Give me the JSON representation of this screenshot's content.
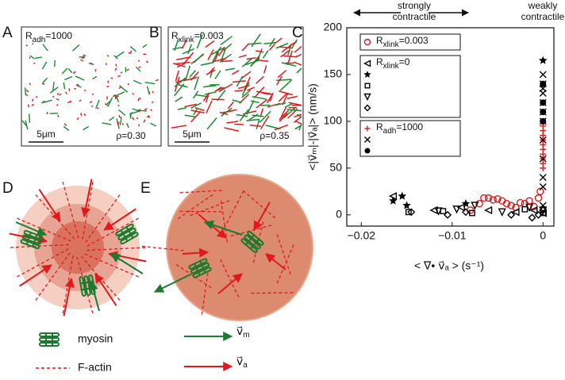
{
  "panels": {
    "a": {
      "letter": "A",
      "param": {
        "main": "R",
        "sub": "adh",
        "rest": "=1000"
      },
      "scale": "5μm",
      "density": "ρ=0.30"
    },
    "b": {
      "letter": "B",
      "param": {
        "main": "R",
        "sub": "xlink",
        "rest": "=0.003"
      },
      "scale": "5μm",
      "density": "ρ=0.35"
    },
    "c": {
      "letter": "C"
    },
    "d": {
      "letter": "D"
    },
    "e": {
      "letter": "E"
    },
    "legend": {
      "myosin": "myosin",
      "actin": "F-actin",
      "vm": {
        "main": "v⃗",
        "sub": "m"
      },
      "va": {
        "main": "v⃗",
        "sub": "a"
      }
    }
  },
  "chart_data": {
    "type": "scatter",
    "top_labels": {
      "left": [
        "strongly",
        "contractile"
      ],
      "right": [
        "weakly",
        "contractile"
      ]
    },
    "y_label": "<|v⃗ₘ|-|v⃗ₐ|> (nm/s)",
    "x_label": "< ∇• v⃗ₐ >  (s⁻¹)",
    "xlim": [
      -0.0216,
      0.0012
    ],
    "ylim": [
      -12,
      200
    ],
    "xticks": [
      {
        "value": -0.02,
        "label": "−0.02"
      },
      {
        "value": -0.01,
        "label": "−0.01"
      },
      0
    ],
    "yticks": [
      0,
      50,
      100,
      150,
      200
    ],
    "legend_groups": [
      {
        "label": {
          "main": "R",
          "sub": "xlink",
          "rest": "=0.003"
        },
        "series": [
          0
        ]
      },
      {
        "label": {
          "main": "R",
          "sub": "xlink",
          "rest": "=0"
        },
        "series": [
          1,
          2,
          3,
          4,
          5
        ]
      },
      {
        "label": {
          "main": "R",
          "sub": "adh",
          "rest": "=1000"
        },
        "series": [
          6,
          7,
          8
        ]
      }
    ],
    "series": [
      {
        "marker": "circle",
        "color": "#e0191b",
        "x": [
          -0.008,
          -0.007,
          -0.0065,
          -0.006,
          -0.0055,
          -0.005,
          -0.0045,
          -0.004,
          -0.0035,
          -0.003,
          -0.0025,
          -0.002,
          -0.0015,
          -0.001,
          -0.0005,
          -0.0003
        ],
        "values": [
          5,
          12,
          18,
          18,
          16,
          17,
          15,
          12,
          10,
          8,
          13,
          12,
          15,
          9,
          18,
          25
        ]
      },
      {
        "marker": "triangle-left",
        "color": "#000000",
        "x": [
          -0.0165,
          -0.012,
          -0.009,
          -0.006,
          -0.003,
          -0.001,
          0
        ],
        "values": [
          20,
          5,
          8,
          5,
          3,
          5,
          2
        ]
      },
      {
        "marker": "star",
        "color": "#000000",
        "x": [
          -0.0165,
          -0.0155,
          -0.015,
          -0.0085,
          0
        ],
        "values": [
          15,
          20,
          10,
          12,
          165
        ]
      },
      {
        "marker": "square",
        "color": "#000000",
        "x": [
          -0.0148,
          -0.011,
          -0.0078,
          -0.002,
          0
        ],
        "values": [
          3,
          4,
          2,
          6,
          2
        ]
      },
      {
        "marker": "triangle-down",
        "color": "#000000",
        "x": [
          -0.0115,
          -0.0095,
          -0.0075,
          -0.0045,
          -0.0015,
          0
        ],
        "values": [
          4,
          6,
          10,
          3,
          8,
          5
        ]
      },
      {
        "marker": "diamond",
        "color": "#000000",
        "x": [
          -0.0145,
          -0.0105,
          -0.0085,
          -0.0035,
          -0.0012,
          -0.0005,
          0
        ],
        "values": [
          3,
          0,
          3,
          0,
          -3,
          0,
          5
        ]
      },
      {
        "marker": "plus",
        "color": "#e0191b",
        "x": [
          0,
          0,
          0,
          0,
          0,
          0,
          0,
          0,
          0,
          0,
          0
        ],
        "values": [
          50,
          55,
          60,
          65,
          70,
          75,
          80,
          85,
          90,
          95,
          100
        ]
      },
      {
        "marker": "x",
        "color": "#000000",
        "x": [
          0,
          0,
          0,
          0,
          0,
          0,
          0,
          0,
          0,
          0,
          0,
          0
        ],
        "values": [
          10,
          30,
          40,
          60,
          80,
          100,
          110,
          120,
          130,
          135,
          140,
          150
        ]
      },
      {
        "marker": "dot",
        "color": "#000000",
        "x": [
          0,
          0,
          0,
          0
        ],
        "values": [
          100,
          110,
          120,
          140
        ]
      }
    ]
  }
}
